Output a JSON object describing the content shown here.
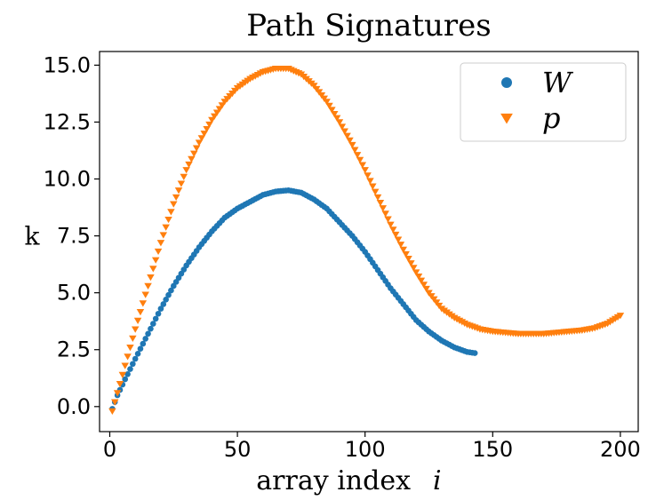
{
  "chart_data": {
    "type": "scatter",
    "title": "Path Signatures",
    "xlabel": "array index",
    "xlabel_symbol": "i",
    "ylabel": "k",
    "xlim": [
      -4,
      207
    ],
    "ylim": [
      -1.1,
      15.6
    ],
    "xticks": [
      0,
      50,
      100,
      150,
      200
    ],
    "xtick_labels": [
      "0",
      "50",
      "100",
      "150",
      "200"
    ],
    "yticks": [
      0.0,
      2.5,
      5.0,
      7.5,
      10.0,
      12.5,
      15.0
    ],
    "ytick_labels": [
      "0.0",
      "2.5",
      "5.0",
      "7.5",
      "10.0",
      "12.5",
      "15.0"
    ],
    "legend_position": "upper right",
    "grid": false,
    "series": [
      {
        "name": "W",
        "marker": "circle",
        "color": "#1f77b4",
        "points": [
          [
            1,
            -0.1
          ],
          [
            3,
            0.5
          ],
          [
            6,
            1.2
          ],
          [
            10,
            2.1
          ],
          [
            15,
            3.2
          ],
          [
            20,
            4.3
          ],
          [
            25,
            5.3
          ],
          [
            30,
            6.2
          ],
          [
            35,
            7.0
          ],
          [
            40,
            7.7
          ],
          [
            45,
            8.3
          ],
          [
            50,
            8.7
          ],
          [
            55,
            9.0
          ],
          [
            60,
            9.3
          ],
          [
            65,
            9.45
          ],
          [
            70,
            9.5
          ],
          [
            75,
            9.4
          ],
          [
            80,
            9.1
          ],
          [
            85,
            8.7
          ],
          [
            90,
            8.1
          ],
          [
            95,
            7.5
          ],
          [
            100,
            6.8
          ],
          [
            105,
            6.0
          ],
          [
            110,
            5.2
          ],
          [
            115,
            4.5
          ],
          [
            120,
            3.8
          ],
          [
            125,
            3.3
          ],
          [
            130,
            2.9
          ],
          [
            135,
            2.6
          ],
          [
            140,
            2.4
          ],
          [
            143,
            2.35
          ]
        ]
      },
      {
        "name": "p",
        "marker": "triangle-down",
        "color": "#ff7f0e",
        "points": [
          [
            1,
            -0.2
          ],
          [
            3,
            0.6
          ],
          [
            6,
            1.8
          ],
          [
            10,
            3.4
          ],
          [
            15,
            5.3
          ],
          [
            20,
            7.2
          ],
          [
            25,
            8.9
          ],
          [
            30,
            10.4
          ],
          [
            35,
            11.6
          ],
          [
            40,
            12.6
          ],
          [
            45,
            13.4
          ],
          [
            50,
            14.0
          ],
          [
            55,
            14.4
          ],
          [
            60,
            14.7
          ],
          [
            65,
            14.85
          ],
          [
            70,
            14.85
          ],
          [
            75,
            14.6
          ],
          [
            80,
            14.1
          ],
          [
            85,
            13.4
          ],
          [
            90,
            12.5
          ],
          [
            95,
            11.5
          ],
          [
            100,
            10.4
          ],
          [
            105,
            9.2
          ],
          [
            110,
            8.0
          ],
          [
            115,
            6.9
          ],
          [
            120,
            5.9
          ],
          [
            125,
            5.0
          ],
          [
            130,
            4.3
          ],
          [
            135,
            3.9
          ],
          [
            140,
            3.6
          ],
          [
            145,
            3.4
          ],
          [
            150,
            3.3
          ],
          [
            155,
            3.25
          ],
          [
            160,
            3.2
          ],
          [
            165,
            3.2
          ],
          [
            170,
            3.2
          ],
          [
            175,
            3.25
          ],
          [
            180,
            3.3
          ],
          [
            185,
            3.35
          ],
          [
            190,
            3.45
          ],
          [
            195,
            3.65
          ],
          [
            200,
            4.0
          ]
        ]
      }
    ]
  }
}
